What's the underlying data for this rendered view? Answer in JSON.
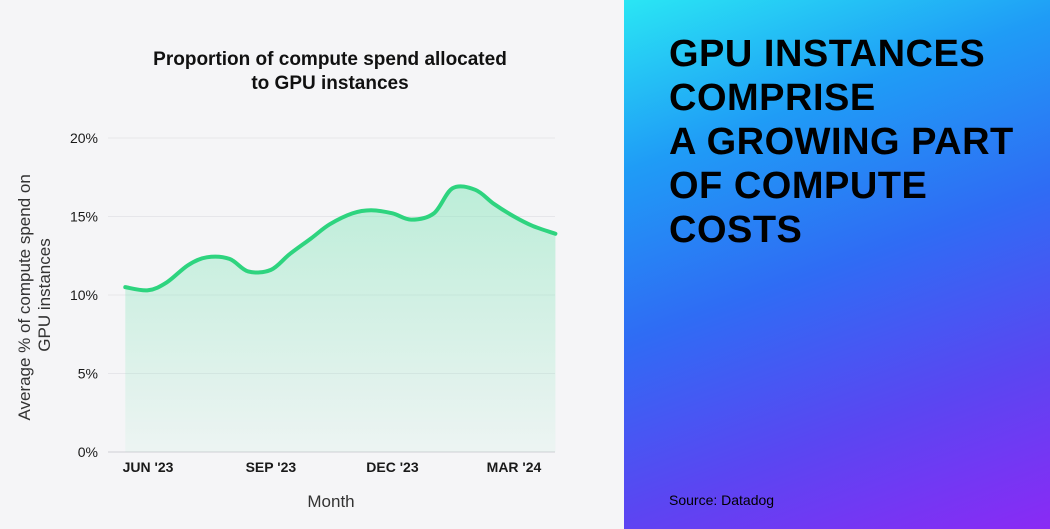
{
  "chart_data": {
    "type": "area",
    "title_lines": [
      "Proportion of compute spend allocated",
      "to GPU instances"
    ],
    "ylabel_lines": [
      "Average % of compute spend on",
      "GPU instances"
    ],
    "xlabel": "Month",
    "x_ticks": [
      "JUN '23",
      "SEP '23",
      "DEC '23",
      "MAR '24"
    ],
    "y_ticks": [
      "0%",
      "5%",
      "10%",
      "15%",
      "20%"
    ],
    "ylim": [
      0,
      20
    ],
    "x_months": [
      "2023-05-15",
      "2023-06-01",
      "2023-06-15",
      "2023-07-01",
      "2023-07-15",
      "2023-08-01",
      "2023-08-15",
      "2023-09-01",
      "2023-09-15",
      "2023-10-01",
      "2023-10-15",
      "2023-11-01",
      "2023-11-15",
      "2023-12-01",
      "2023-12-15",
      "2024-01-01",
      "2024-01-15",
      "2024-02-01",
      "2024-02-15",
      "2024-03-01",
      "2024-03-15",
      "2024-04-01"
    ],
    "values": [
      10.5,
      10.3,
      10.8,
      11.9,
      12.4,
      12.3,
      11.5,
      11.6,
      12.6,
      13.6,
      14.5,
      15.2,
      15.4,
      15.2,
      14.8,
      15.2,
      16.8,
      16.7,
      15.8,
      15.0,
      14.4,
      13.9
    ],
    "grid": true,
    "line_color": "#2ed47f",
    "fill_color": "#8ee7bf"
  },
  "headline_lines": [
    "GPU INSTANCES",
    "COMPRISE",
    "A GROWING PART",
    "OF COMPUTE",
    "COSTS"
  ],
  "source": "Source: Datadog"
}
